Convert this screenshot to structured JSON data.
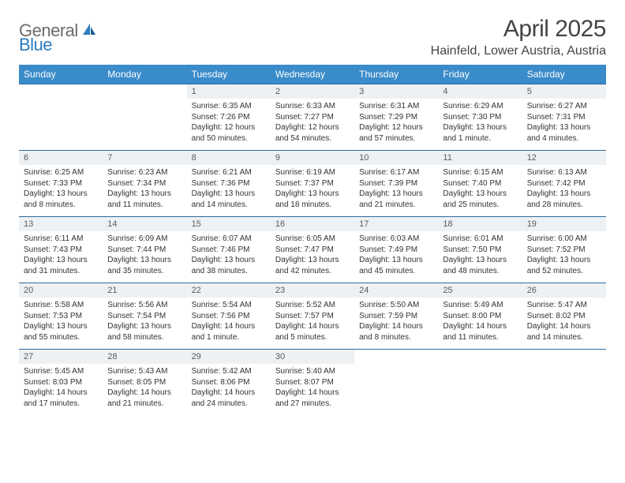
{
  "brand": {
    "general": "General",
    "blue": "Blue"
  },
  "title": "April 2025",
  "subtitle": "Hainfeld, Lower Austria, Austria",
  "columns": [
    "Sunday",
    "Monday",
    "Tuesday",
    "Wednesday",
    "Thursday",
    "Friday",
    "Saturday"
  ],
  "colors": {
    "header_bg": "#3a8bc9",
    "header_text": "#ffffff",
    "daynum_bg": "#eef1f3",
    "row_border": "#2d6aa0",
    "logo_gray": "#6b6b6b",
    "logo_blue": "#2b7bbf",
    "text": "#333333"
  },
  "weeks": [
    [
      null,
      null,
      {
        "n": "1",
        "sr": "Sunrise: 6:35 AM",
        "ss": "Sunset: 7:26 PM",
        "dl": "Daylight: 12 hours and 50 minutes."
      },
      {
        "n": "2",
        "sr": "Sunrise: 6:33 AM",
        "ss": "Sunset: 7:27 PM",
        "dl": "Daylight: 12 hours and 54 minutes."
      },
      {
        "n": "3",
        "sr": "Sunrise: 6:31 AM",
        "ss": "Sunset: 7:29 PM",
        "dl": "Daylight: 12 hours and 57 minutes."
      },
      {
        "n": "4",
        "sr": "Sunrise: 6:29 AM",
        "ss": "Sunset: 7:30 PM",
        "dl": "Daylight: 13 hours and 1 minute."
      },
      {
        "n": "5",
        "sr": "Sunrise: 6:27 AM",
        "ss": "Sunset: 7:31 PM",
        "dl": "Daylight: 13 hours and 4 minutes."
      }
    ],
    [
      {
        "n": "6",
        "sr": "Sunrise: 6:25 AM",
        "ss": "Sunset: 7:33 PM",
        "dl": "Daylight: 13 hours and 8 minutes."
      },
      {
        "n": "7",
        "sr": "Sunrise: 6:23 AM",
        "ss": "Sunset: 7:34 PM",
        "dl": "Daylight: 13 hours and 11 minutes."
      },
      {
        "n": "8",
        "sr": "Sunrise: 6:21 AM",
        "ss": "Sunset: 7:36 PM",
        "dl": "Daylight: 13 hours and 14 minutes."
      },
      {
        "n": "9",
        "sr": "Sunrise: 6:19 AM",
        "ss": "Sunset: 7:37 PM",
        "dl": "Daylight: 13 hours and 18 minutes."
      },
      {
        "n": "10",
        "sr": "Sunrise: 6:17 AM",
        "ss": "Sunset: 7:39 PM",
        "dl": "Daylight: 13 hours and 21 minutes."
      },
      {
        "n": "11",
        "sr": "Sunrise: 6:15 AM",
        "ss": "Sunset: 7:40 PM",
        "dl": "Daylight: 13 hours and 25 minutes."
      },
      {
        "n": "12",
        "sr": "Sunrise: 6:13 AM",
        "ss": "Sunset: 7:42 PM",
        "dl": "Daylight: 13 hours and 28 minutes."
      }
    ],
    [
      {
        "n": "13",
        "sr": "Sunrise: 6:11 AM",
        "ss": "Sunset: 7:43 PM",
        "dl": "Daylight: 13 hours and 31 minutes."
      },
      {
        "n": "14",
        "sr": "Sunrise: 6:09 AM",
        "ss": "Sunset: 7:44 PM",
        "dl": "Daylight: 13 hours and 35 minutes."
      },
      {
        "n": "15",
        "sr": "Sunrise: 6:07 AM",
        "ss": "Sunset: 7:46 PM",
        "dl": "Daylight: 13 hours and 38 minutes."
      },
      {
        "n": "16",
        "sr": "Sunrise: 6:05 AM",
        "ss": "Sunset: 7:47 PM",
        "dl": "Daylight: 13 hours and 42 minutes."
      },
      {
        "n": "17",
        "sr": "Sunrise: 6:03 AM",
        "ss": "Sunset: 7:49 PM",
        "dl": "Daylight: 13 hours and 45 minutes."
      },
      {
        "n": "18",
        "sr": "Sunrise: 6:01 AM",
        "ss": "Sunset: 7:50 PM",
        "dl": "Daylight: 13 hours and 48 minutes."
      },
      {
        "n": "19",
        "sr": "Sunrise: 6:00 AM",
        "ss": "Sunset: 7:52 PM",
        "dl": "Daylight: 13 hours and 52 minutes."
      }
    ],
    [
      {
        "n": "20",
        "sr": "Sunrise: 5:58 AM",
        "ss": "Sunset: 7:53 PM",
        "dl": "Daylight: 13 hours and 55 minutes."
      },
      {
        "n": "21",
        "sr": "Sunrise: 5:56 AM",
        "ss": "Sunset: 7:54 PM",
        "dl": "Daylight: 13 hours and 58 minutes."
      },
      {
        "n": "22",
        "sr": "Sunrise: 5:54 AM",
        "ss": "Sunset: 7:56 PM",
        "dl": "Daylight: 14 hours and 1 minute."
      },
      {
        "n": "23",
        "sr": "Sunrise: 5:52 AM",
        "ss": "Sunset: 7:57 PM",
        "dl": "Daylight: 14 hours and 5 minutes."
      },
      {
        "n": "24",
        "sr": "Sunrise: 5:50 AM",
        "ss": "Sunset: 7:59 PM",
        "dl": "Daylight: 14 hours and 8 minutes."
      },
      {
        "n": "25",
        "sr": "Sunrise: 5:49 AM",
        "ss": "Sunset: 8:00 PM",
        "dl": "Daylight: 14 hours and 11 minutes."
      },
      {
        "n": "26",
        "sr": "Sunrise: 5:47 AM",
        "ss": "Sunset: 8:02 PM",
        "dl": "Daylight: 14 hours and 14 minutes."
      }
    ],
    [
      {
        "n": "27",
        "sr": "Sunrise: 5:45 AM",
        "ss": "Sunset: 8:03 PM",
        "dl": "Daylight: 14 hours and 17 minutes."
      },
      {
        "n": "28",
        "sr": "Sunrise: 5:43 AM",
        "ss": "Sunset: 8:05 PM",
        "dl": "Daylight: 14 hours and 21 minutes."
      },
      {
        "n": "29",
        "sr": "Sunrise: 5:42 AM",
        "ss": "Sunset: 8:06 PM",
        "dl": "Daylight: 14 hours and 24 minutes."
      },
      {
        "n": "30",
        "sr": "Sunrise: 5:40 AM",
        "ss": "Sunset: 8:07 PM",
        "dl": "Daylight: 14 hours and 27 minutes."
      },
      null,
      null,
      null
    ]
  ]
}
